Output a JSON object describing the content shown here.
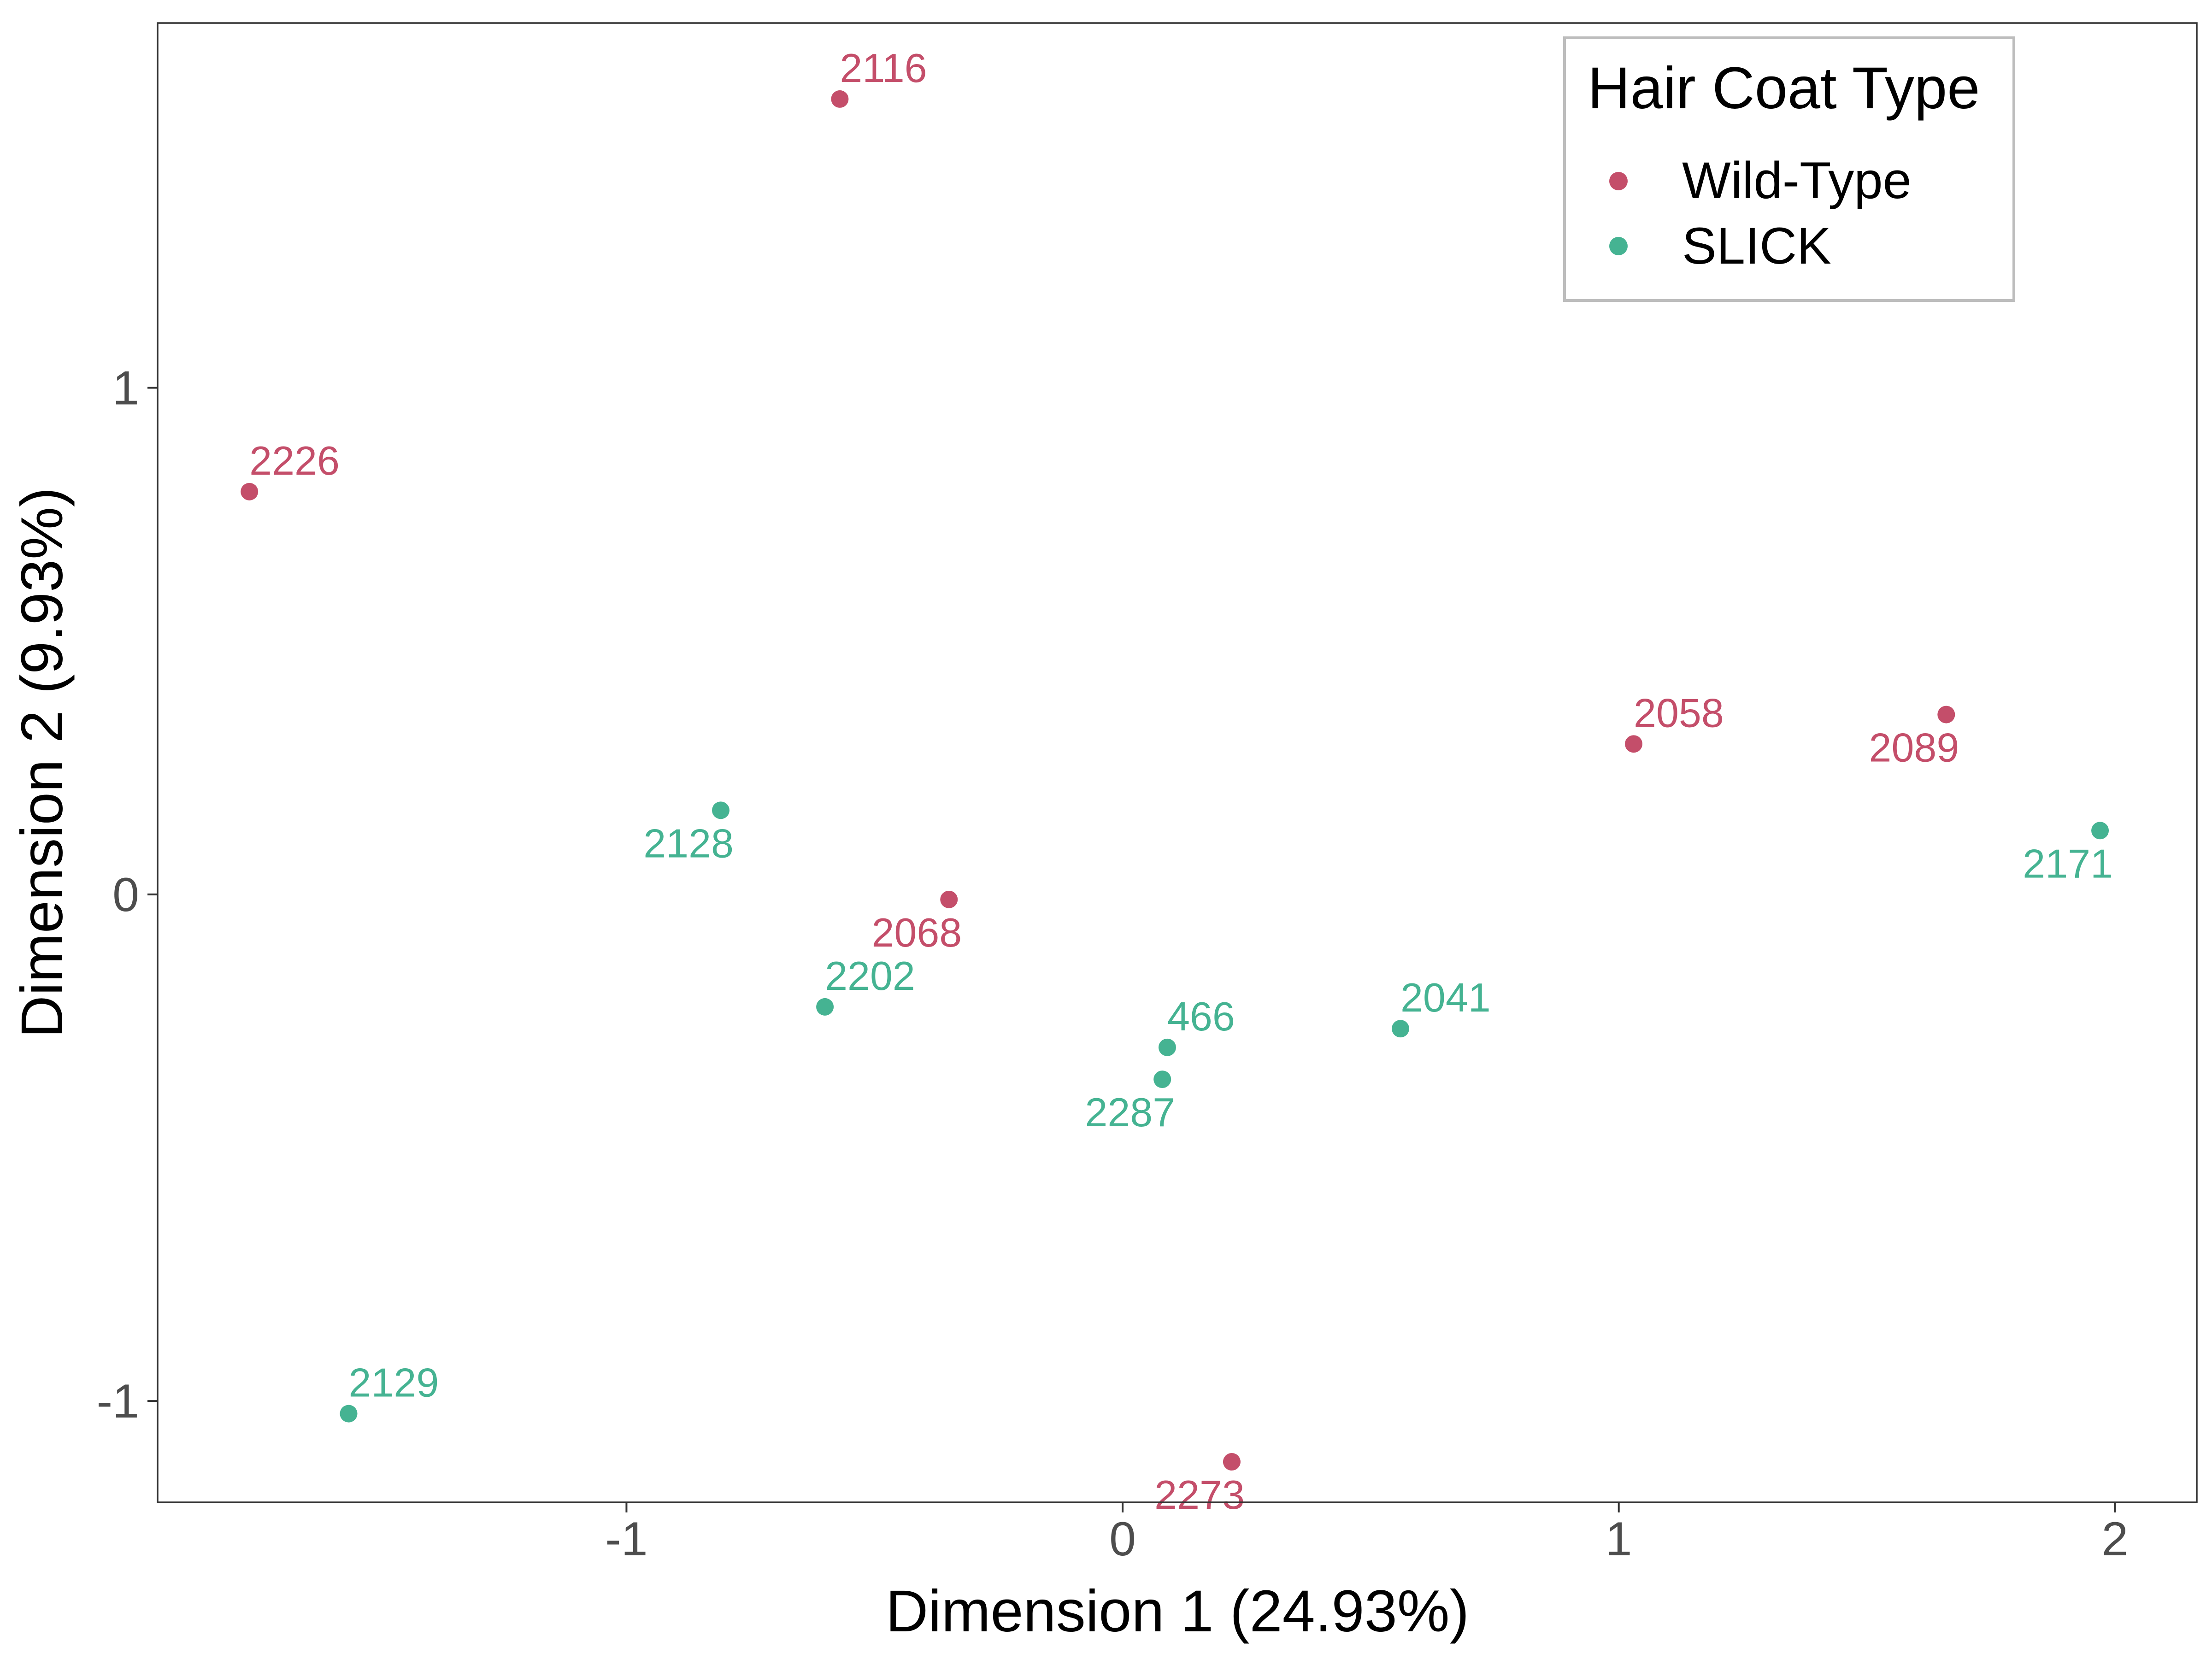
{
  "chart_data": {
    "type": "scatter",
    "title": "",
    "xlabel": "Dimension 1 (24.93%)",
    "ylabel": "Dimension 2 (9.93%)",
    "xlim": [
      -1.945,
      2.165
    ],
    "ylim": [
      -1.2,
      1.72
    ],
    "xticks": [
      -1,
      0,
      1,
      2
    ],
    "yticks": [
      -1,
      0,
      1
    ],
    "grid": false,
    "legend": {
      "title": "Hair Coat Type",
      "position": "top-right",
      "entries": [
        {
          "name": "Wild-Type",
          "color": "#c44e6a"
        },
        {
          "name": "SLICK",
          "color": "#45b392"
        }
      ]
    },
    "series": [
      {
        "name": "Wild-Type",
        "color": "#c44e6a",
        "points": [
          {
            "label": "2116",
            "x": -0.57,
            "y": 1.57,
            "label_pos": "above-right"
          },
          {
            "label": "2226",
            "x": -1.76,
            "y": 0.795,
            "label_pos": "above-right"
          },
          {
            "label": "2058",
            "x": 1.03,
            "y": 0.297,
            "label_pos": "above-right"
          },
          {
            "label": "2089",
            "x": 1.66,
            "y": 0.355,
            "label_pos": "below-left"
          },
          {
            "label": "2068",
            "x": -0.35,
            "y": -0.01,
            "label_pos": "below-left"
          },
          {
            "label": "2273",
            "x": 0.22,
            "y": -1.12,
            "label_pos": "below-left"
          }
        ]
      },
      {
        "name": "SLICK",
        "color": "#45b392",
        "points": [
          {
            "label": "2128",
            "x": -0.81,
            "y": 0.166,
            "label_pos": "below-left"
          },
          {
            "label": "2171",
            "x": 1.97,
            "y": 0.126,
            "label_pos": "below-left"
          },
          {
            "label": "2202",
            "x": -0.6,
            "y": -0.222,
            "label_pos": "above-right"
          },
          {
            "label": "466",
            "x": 0.09,
            "y": -0.302,
            "label_pos": "above-right"
          },
          {
            "label": "2041",
            "x": 0.56,
            "y": -0.265,
            "label_pos": "above-right"
          },
          {
            "label": "2287",
            "x": 0.08,
            "y": -0.365,
            "label_pos": "below-left"
          },
          {
            "label": "2129",
            "x": -1.56,
            "y": -1.025,
            "label_pos": "above-right"
          }
        ]
      }
    ]
  }
}
